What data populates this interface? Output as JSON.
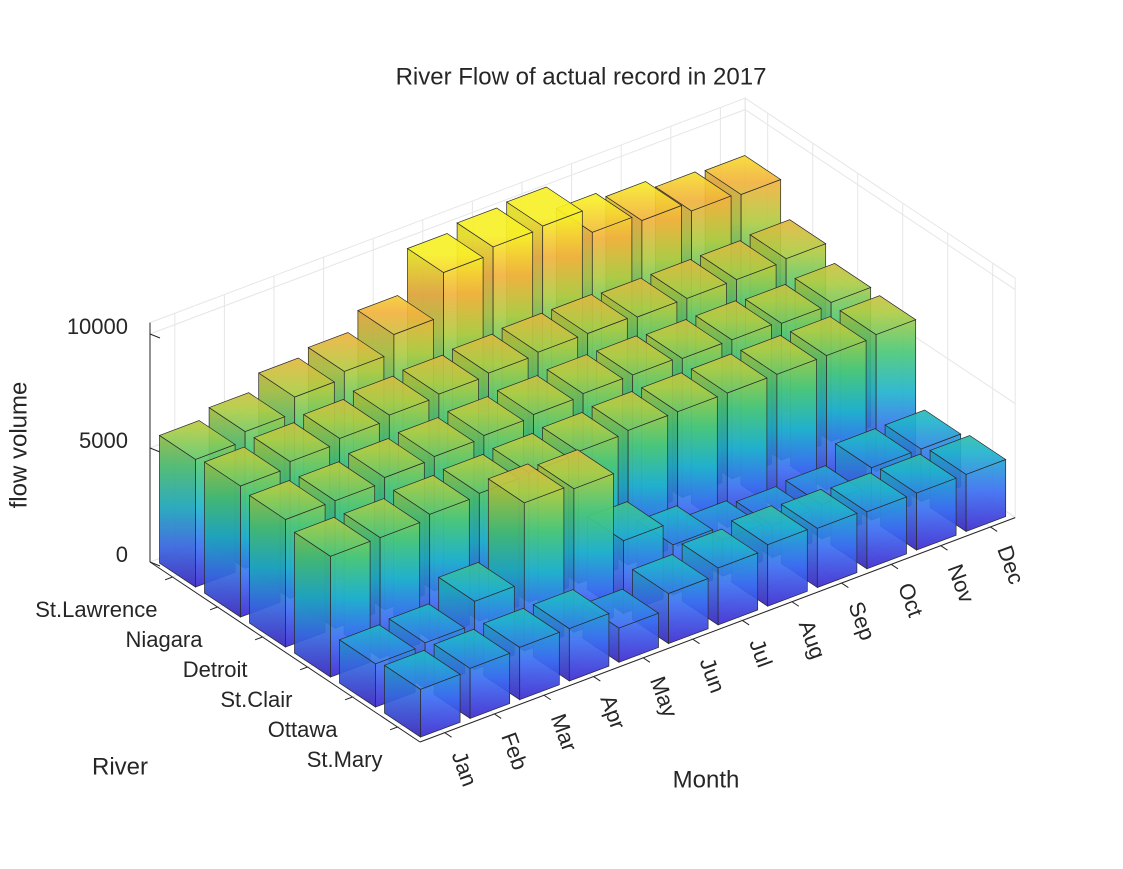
{
  "chart_data": {
    "type": "bar3d",
    "title": "River Flow of actual record in 2017",
    "x_label": "Month",
    "y_label": "River",
    "z_label": "flow volume",
    "categories": [
      "Jan",
      "Feb",
      "Mar",
      "Apr",
      "May",
      "Jun",
      "Jul",
      "Aug",
      "Sep",
      "Oct",
      "Nov",
      "Dec"
    ],
    "series": [
      {
        "name": "St.Lawrence",
        "values": [
          5600,
          6000,
          6700,
          7000,
          7800,
          9700,
          10000,
          10100,
          9000,
          8700,
          8300,
          8200
        ]
      },
      {
        "name": "Niagara",
        "values": [
          5750,
          6000,
          6200,
          6400,
          6500,
          6600,
          6700,
          6700,
          6600,
          6600,
          6600,
          6700
        ]
      },
      {
        "name": "Detroit",
        "values": [
          5600,
          5600,
          5800,
          5900,
          6000,
          6100,
          6200,
          6200,
          6100,
          6100,
          6000,
          6100
        ]
      },
      {
        "name": "St.Clair",
        "values": [
          5300,
          5300,
          5500,
          5600,
          5700,
          5800,
          5900,
          5900,
          5900,
          5900,
          5900,
          6000
        ]
      },
      {
        "name": "Ottawa",
        "values": [
          1900,
          2000,
          3000,
          6500,
          6300,
          3200,
          2200,
          1600,
          1400,
          1500,
          2300,
          2300
        ]
      },
      {
        "name": "St.Mary",
        "values": [
          2100,
          2200,
          2300,
          2300,
          1500,
          2200,
          2500,
          2700,
          2600,
          2500,
          2500,
          2500
        ]
      }
    ],
    "zlim": [
      0,
      10500
    ],
    "zticks": [
      0,
      5000,
      10000
    ],
    "grid": true,
    "colormap": [
      "#3d2ad0",
      "#3b6ef2",
      "#20b4cc",
      "#4cc878",
      "#b0cc44",
      "#f2b23e",
      "#f8f028"
    ]
  }
}
